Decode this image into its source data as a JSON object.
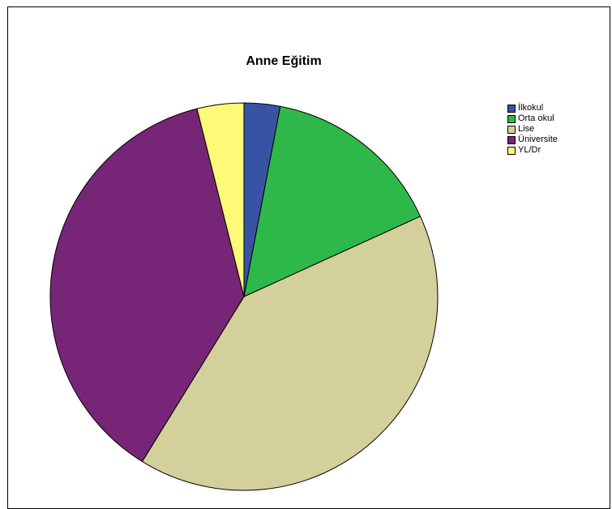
{
  "chart_data": {
    "type": "pie",
    "title": "Anne Eğitim",
    "categories": [
      "İlkokul",
      "Orta okul",
      "Lise",
      "Üniversite",
      "YL/Dr"
    ],
    "values": [
      3.0,
      15.2,
      40.6,
      37.3,
      3.9
    ],
    "unit": "%",
    "colors": [
      "#3953a4",
      "#2fb84a",
      "#d4d09b",
      "#772577",
      "#fcfa76"
    ],
    "start_angle_deg": 0,
    "direction": "clockwise",
    "legend": "right",
    "grid": false
  }
}
